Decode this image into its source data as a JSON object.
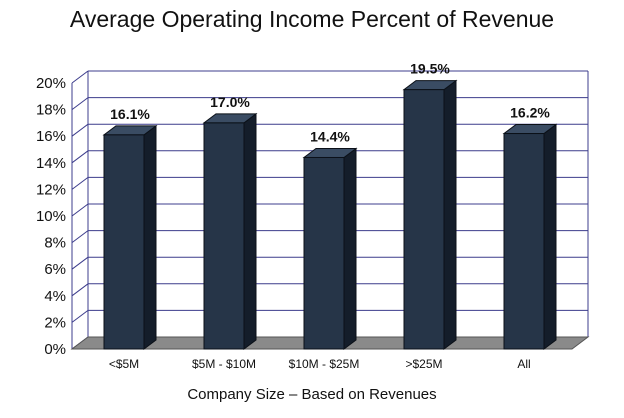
{
  "chart_data": {
    "type": "bar",
    "title": "Average Operating Income Percent of Revenue",
    "xlabel": "Company Size – Based on Revenues",
    "ylabel": "",
    "categories": [
      "<$5M",
      "$5M - $10M",
      "$10M - $25M",
      ">$25M",
      "All"
    ],
    "values": [
      16.1,
      17.0,
      14.4,
      19.5,
      16.2
    ],
    "data_labels": [
      "16.1%",
      "17.0%",
      "14.4%",
      "19.5%",
      "16.2%"
    ],
    "ylim": [
      0,
      20
    ],
    "yticks": [
      0,
      2,
      4,
      6,
      8,
      10,
      12,
      14,
      16,
      18,
      20
    ],
    "ytick_labels": [
      "0%",
      "2%",
      "4%",
      "6%",
      "8%",
      "10%",
      "12%",
      "14%",
      "16%",
      "18%",
      "20%"
    ],
    "grid": true,
    "legend": "none",
    "three_d": true,
    "colors": {
      "bar_front": "#263548",
      "bar_side": "#141d2a",
      "bar_top": "#3a4c63",
      "bar_edge": "#0b1018",
      "grid": "#3c3c8c",
      "floor": "#8a8a8a",
      "floor_edge": "#555555"
    }
  }
}
